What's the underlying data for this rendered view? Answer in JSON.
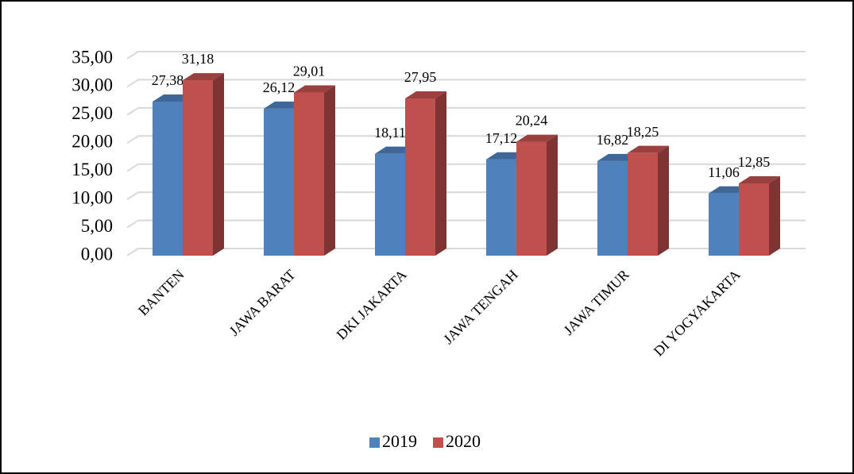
{
  "chart_data": {
    "type": "bar3d",
    "categories": [
      "BANTEN",
      "JAWA BARAT",
      "DKI JAKARTA",
      "JAWA TENGAH",
      "JAWA TIMUR",
      "DI YOGYAKARTA"
    ],
    "series": [
      {
        "name": "2019",
        "color": "#4f81bd",
        "values": [
          27.38,
          26.12,
          18.11,
          17.12,
          16.82,
          11.06
        ],
        "value_labels": [
          "27,38",
          "26,12",
          "18,11",
          "17,12",
          "16,82",
          "11,06"
        ]
      },
      {
        "name": "2020",
        "color": "#c0504d",
        "values": [
          31.18,
          29.01,
          27.95,
          20.24,
          18.25,
          12.85
        ],
        "value_labels": [
          "31,18",
          "29,01",
          "27,95",
          "20,24",
          "18,25",
          "12,85"
        ]
      }
    ],
    "ylim": [
      0,
      35
    ],
    "yticks": [
      {
        "value": 0,
        "label": "0,00"
      },
      {
        "value": 5,
        "label": "5,00"
      },
      {
        "value": 10,
        "label": "10,00"
      },
      {
        "value": 15,
        "label": "15,00"
      },
      {
        "value": 20,
        "label": "20,00"
      },
      {
        "value": 25,
        "label": "25,00"
      },
      {
        "value": 30,
        "label": "30,00"
      },
      {
        "value": 35,
        "label": "35,00"
      }
    ],
    "grid": true,
    "legend": "bottom"
  }
}
